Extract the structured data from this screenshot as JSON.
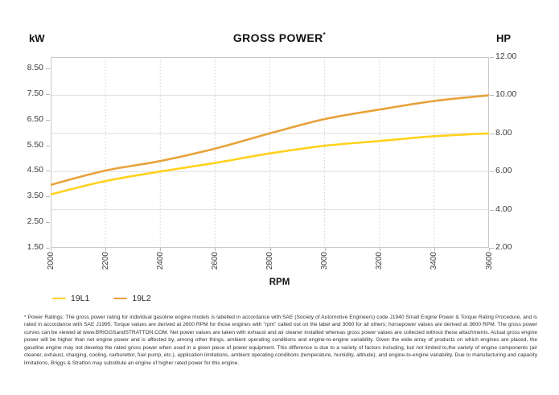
{
  "header": {
    "left_axis_unit": "kW",
    "title": "GROSS POWER",
    "title_sup": "*",
    "right_axis_unit": "HP"
  },
  "chart_data": {
    "type": "line",
    "title": "GROSS POWER*",
    "xlabel": "RPM",
    "grid": true,
    "legend_position": "bottom-left",
    "x_axis": {
      "label": "RPM",
      "ticks": [
        2000,
        2200,
        2400,
        2600,
        2800,
        3000,
        3200,
        3400,
        3600
      ],
      "range": [
        2000,
        3600
      ]
    },
    "left_axis": {
      "unit": "kW",
      "tick_labels": [
        "8.50",
        "7.50",
        "6.50",
        "5.50",
        "4.50",
        "3.50",
        "2.50",
        "1.50"
      ]
    },
    "right_axis": {
      "unit": "HP",
      "tick_labels": [
        "12.00",
        "10.00",
        "8.00",
        "6.00",
        "4.00",
        "2.00"
      ],
      "range_hp": [
        2,
        12
      ]
    },
    "kw_per_hp": 0.7457,
    "series": [
      {
        "name": "19L1",
        "color": "#FFD21E",
        "values_hp": [
          4.8,
          5.5,
          6.0,
          6.45,
          6.95,
          7.35,
          7.6,
          7.85,
          8.0
        ],
        "values_kw": [
          3.58,
          4.1,
          4.47,
          4.81,
          5.18,
          5.48,
          5.67,
          5.85,
          5.97
        ]
      },
      {
        "name": "19L2",
        "color": "#E8A23B",
        "values_hp": [
          5.3,
          6.05,
          6.55,
          7.2,
          8.0,
          8.75,
          9.25,
          9.7,
          10.0
        ],
        "values_kw": [
          3.95,
          4.51,
          4.88,
          5.37,
          5.97,
          6.52,
          6.9,
          7.23,
          7.46
        ]
      }
    ],
    "styles": {
      "border_color": "#c8c8c8",
      "hgrid_color": "#dedede",
      "vgrid_color": "#cfcfcf"
    }
  },
  "footnote": "* Power Ratings: The gross power rating for individual gasoline engine models is labelled in accordance with SAE (Society of Automotive Engineers) code J1940 Small Engine Power & Torque Rating Procedure, and is rated in accordance with SAE J1995. Torque values are derived at 2600 RPM for those engines with \"rpm\" called out on the label and 3060 for all others; horsepower values are derived at 3600 RPM. The gross power curves can be viewed at www.BRIGGSandSTRATTON.COM. Net power values are taken with exhaust and air cleaner installed whereas gross power values are collected without these attachments. Actual gross engine power will be higher than net engine power and is affected by, among other things, ambient operating conditions and engine-to-engine variability. Given the wide array of products on which engines are placed, the gasoline engine may not develop the rated gross power when used in a given piece of power equipment. This difference is due to a variety of factors including, but not limited to,the variety of engine components (air cleaner, exhaust, charging, cooling, carburettor, fuel pump, etc.), application limitations, ambient operating conditions (temperature, humidity, altitude), and engine-to-engine variability. Due to manufacturing and capacity limitations, Briggs & Stratton may substitute an engine of higher rated power for this engine."
}
